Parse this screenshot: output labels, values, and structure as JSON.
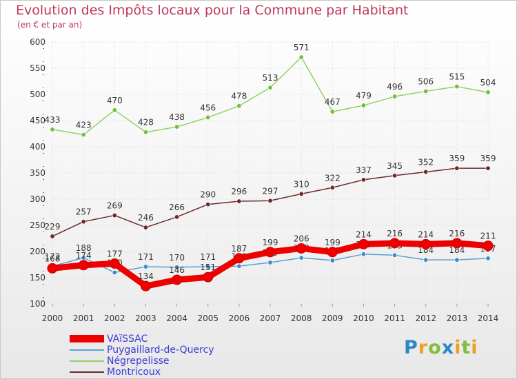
{
  "chart_data": {
    "type": "line",
    "title": "Evolution des Impôts locaux pour la Commune par Habitant",
    "subtitle": "(en € et par an)",
    "xlabel": "",
    "ylabel": "",
    "ylim": [
      100,
      600
    ],
    "yticks": [
      "100",
      "150",
      "200",
      "250",
      "300",
      "350",
      "400",
      "450",
      "500",
      "550",
      "600"
    ],
    "categories": [
      "2000",
      "2001",
      "2002",
      "2003",
      "2004",
      "2005",
      "2006",
      "2007",
      "2008",
      "2009",
      "2010",
      "2011",
      "2012",
      "2013",
      "2014"
    ],
    "series": [
      {
        "name": "Négrepelisse",
        "color": "#8fd264",
        "marker": "#6cc238",
        "values": [
          433,
          423,
          470,
          428,
          438,
          456,
          478,
          513,
          571,
          467,
          479,
          496,
          506,
          515,
          504
        ],
        "labels": [
          "433",
          "423",
          "470",
          "428",
          "438",
          "456",
          "478",
          "513",
          "571",
          "467",
          "479",
          "496",
          "506",
          "515",
          "504"
        ]
      },
      {
        "name": "Montricoux",
        "color": "#6b2a2a",
        "marker": "#6b2a2a",
        "values": [
          229,
          257,
          269,
          246,
          266,
          290,
          296,
          297,
          310,
          322,
          337,
          345,
          352,
          359,
          359
        ],
        "labels": [
          "229",
          "257",
          "269",
          "246",
          "266",
          "290",
          "296",
          "297",
          "310",
          "322",
          "337",
          "345",
          "352",
          "359",
          "359"
        ]
      },
      {
        "name": "Puygaillard-de-Quercy",
        "color": "#5aa0d0",
        "marker": "#3d8cc8",
        "values": [
          172,
          188,
          160,
          171,
          170,
          171,
          172,
          179,
          188,
          183,
          195,
          193,
          184,
          184,
          187
        ],
        "labels": [
          "172",
          "188",
          "160",
          "171",
          "170",
          "171",
          "172",
          "179",
          "188",
          "183",
          "195",
          "193",
          "184",
          "184",
          "187"
        ]
      },
      {
        "name": "VAïSSAC",
        "color": "#ee0000",
        "marker": "#ee0000",
        "values": [
          168,
          174,
          177,
          134,
          146,
          151,
          187,
          199,
          206,
          199,
          214,
          216,
          214,
          216,
          211
        ],
        "labels": [
          "168",
          "174",
          "177",
          "134",
          "146",
          "151",
          "187",
          "199",
          "206",
          "199",
          "214",
          "216",
          "214",
          "216",
          "211"
        ]
      }
    ],
    "legend": [
      "VAïSSAC",
      "Puygaillard-de-Quercy",
      "Négrepelisse",
      "Montricoux"
    ],
    "brand": [
      "P",
      "r",
      "o",
      "x",
      "i",
      "t",
      "i"
    ]
  }
}
